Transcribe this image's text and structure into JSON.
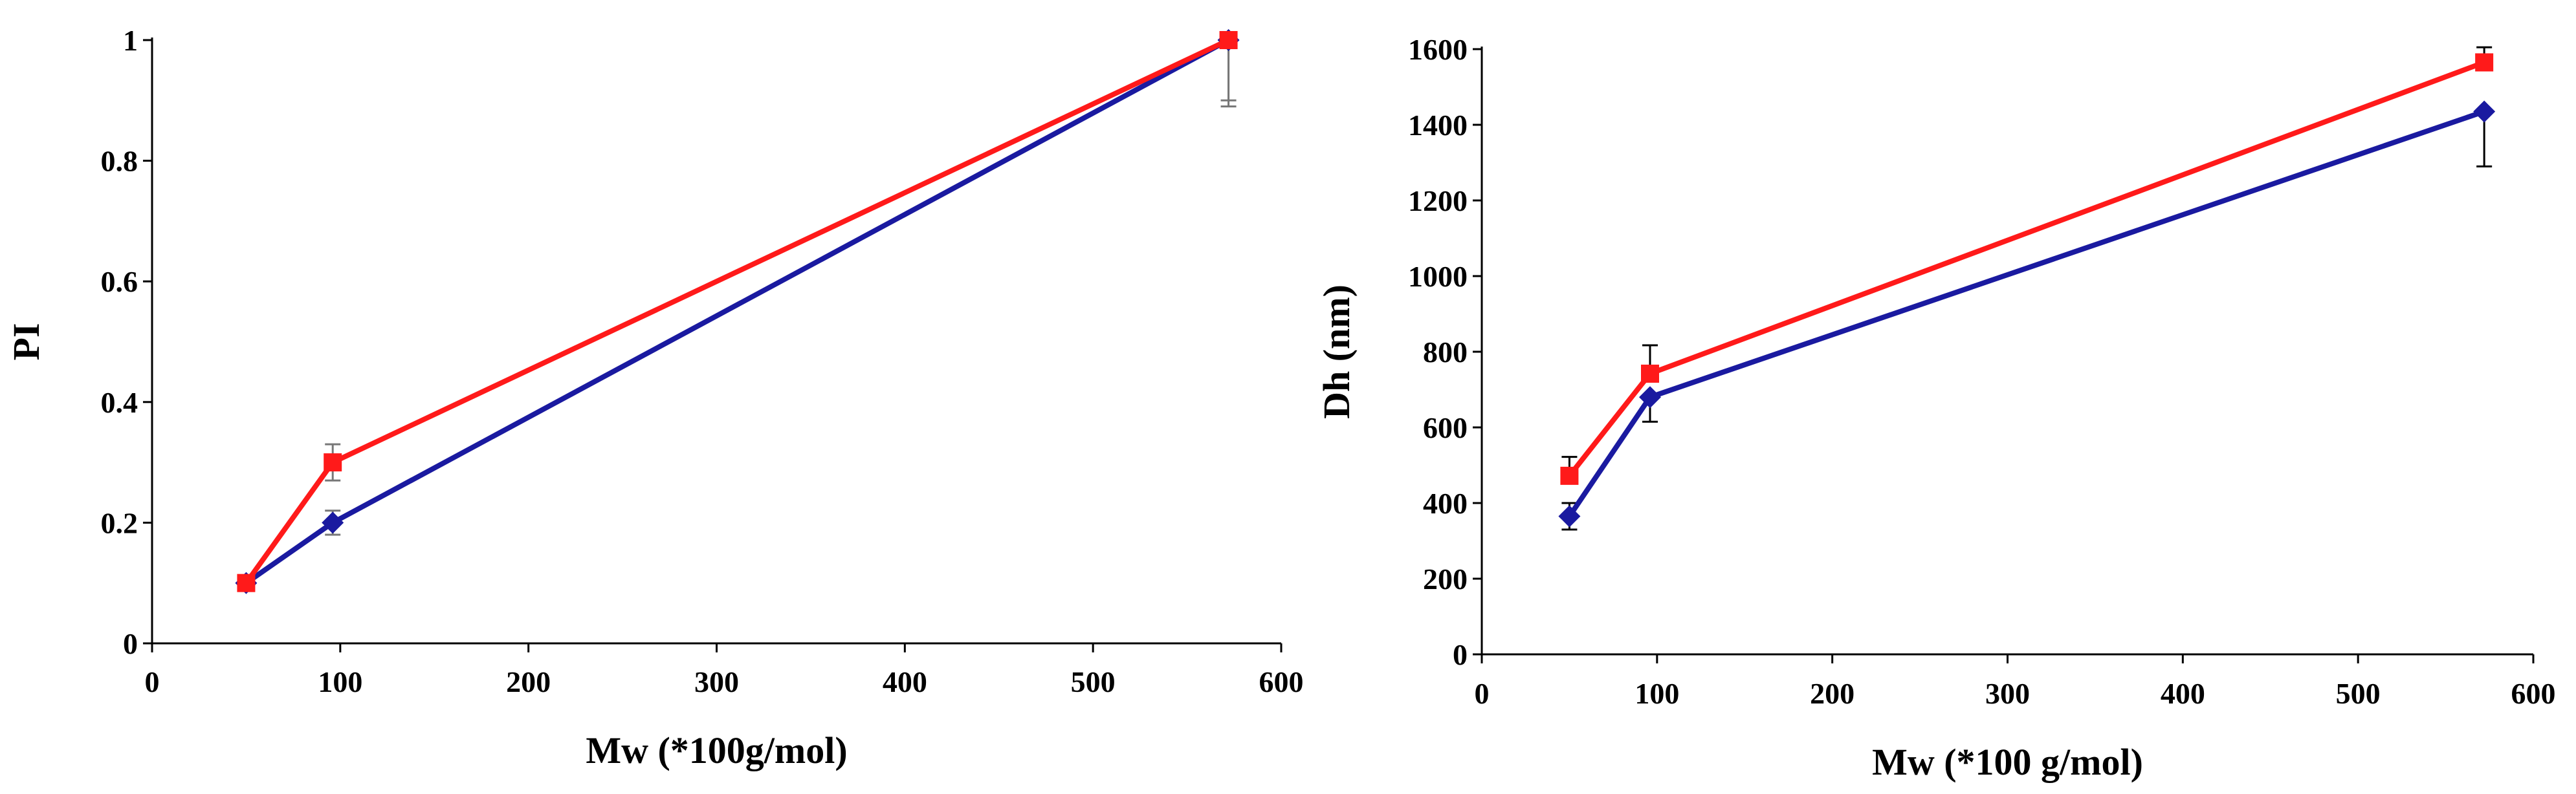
{
  "chart_data": [
    {
      "type": "line",
      "title": "",
      "xlabel": "Mw (*100g/mol)",
      "ylabel": "PI",
      "xlim": [
        0,
        600
      ],
      "ylim": [
        0,
        1
      ],
      "xticks": [
        0,
        100,
        200,
        300,
        400,
        500,
        600
      ],
      "yticks": [
        0,
        0.2,
        0.4,
        0.6,
        0.8,
        1
      ],
      "xtick_labels": [
        "0",
        "100",
        "200",
        "300",
        "400",
        "500",
        "600"
      ],
      "ytick_labels": [
        "0",
        "0.2",
        "0.4",
        "0.6",
        "0.8",
        "1"
      ],
      "grid": false,
      "series": [
        {
          "name": "series-blue",
          "color": "#1a1aa0",
          "marker": "diamond",
          "x": [
            50,
            96,
            572
          ],
          "y": [
            0.1,
            0.2,
            1.0
          ],
          "err_low": [
            0.005,
            0.02,
            0.11
          ],
          "err_high": [
            0.005,
            0.02,
            0.0
          ]
        },
        {
          "name": "series-red",
          "color": "#ff1a1a",
          "marker": "square",
          "x": [
            50,
            96,
            572
          ],
          "y": [
            0.1,
            0.3,
            1.0
          ],
          "err_low": [
            0.005,
            0.03,
            0.1
          ],
          "err_high": [
            0.005,
            0.03,
            0.0
          ]
        }
      ]
    },
    {
      "type": "line",
      "title": "",
      "xlabel": "Mw (*100 g/mol)",
      "ylabel": "Dh (nm)",
      "xlim": [
        0,
        600
      ],
      "ylim": [
        0,
        1600
      ],
      "xticks": [
        0,
        100,
        200,
        300,
        400,
        500,
        600
      ],
      "yticks": [
        0,
        200,
        400,
        600,
        800,
        1000,
        1200,
        1400,
        1600
      ],
      "xtick_labels": [
        "0",
        "100",
        "200",
        "300",
        "400",
        "500",
        "600"
      ],
      "ytick_labels": [
        "0",
        "200",
        "400",
        "600",
        "800",
        "1000",
        "1200",
        "1400",
        "1600"
      ],
      "grid": false,
      "series": [
        {
          "name": "series-blue",
          "color": "#1a1aa0",
          "marker": "diamond",
          "x": [
            50,
            96,
            572
          ],
          "y": [
            365,
            680,
            1435
          ],
          "err_low": [
            35,
            65,
            145
          ],
          "err_high": [
            35,
            0,
            0
          ]
        },
        {
          "name": "series-red",
          "color": "#ff1a1a",
          "marker": "square",
          "x": [
            50,
            96,
            572
          ],
          "y": [
            472,
            742,
            1565
          ],
          "err_low": [
            0,
            0,
            0
          ],
          "err_high": [
            50,
            75,
            40
          ]
        }
      ]
    }
  ]
}
